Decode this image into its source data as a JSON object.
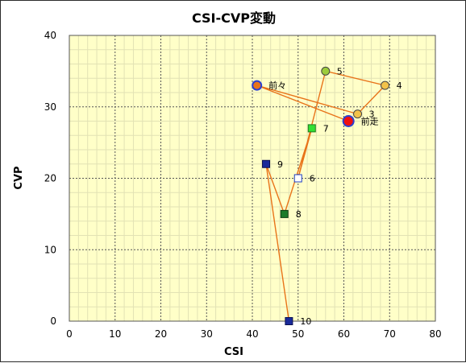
{
  "chart_data": {
    "type": "scatter",
    "title": "CSI-CVP変動",
    "xlabel": "CSI",
    "ylabel": "CVP",
    "xlim": [
      0,
      80
    ],
    "ylim": [
      0,
      40
    ],
    "xticks": [
      "0",
      "10",
      "20",
      "30",
      "40",
      "50",
      "60",
      "70",
      "80"
    ],
    "yticks": [
      "0",
      "10",
      "20",
      "30",
      "40"
    ],
    "grid": true,
    "line_color": "#e8731a",
    "plot_background": "#ffffc8",
    "points": [
      {
        "label": "前々",
        "x": 41,
        "y": 33,
        "marker": "circle",
        "fill": "#e8731a",
        "stroke": "#2b3fd0"
      },
      {
        "label": "前走",
        "x": 61,
        "y": 28,
        "marker": "circle-large",
        "fill": "#ee1111",
        "stroke": "#2b3fd0"
      },
      {
        "label": "3",
        "x": 63,
        "y": 29,
        "marker": "circle",
        "fill": "#f2c24a",
        "stroke": "#444444"
      },
      {
        "label": "4",
        "x": 69,
        "y": 33,
        "marker": "circle",
        "fill": "#f2c24a",
        "stroke": "#444444"
      },
      {
        "label": "5",
        "x": 56,
        "y": 35,
        "marker": "circle",
        "fill": "#9ccc3c",
        "stroke": "#444444"
      },
      {
        "label": "6",
        "x": 50,
        "y": 20,
        "marker": "square",
        "fill": "#ffffff",
        "stroke": "#1f3fc0"
      },
      {
        "label": "7",
        "x": 53,
        "y": 27,
        "marker": "square",
        "fill": "#33e033",
        "stroke": "#1f7a1f"
      },
      {
        "label": "8",
        "x": 47,
        "y": 15,
        "marker": "square",
        "fill": "#1a7a2a",
        "stroke": "#0a3a10"
      },
      {
        "label": "9",
        "x": 43,
        "y": 22,
        "marker": "square",
        "fill": "#1a2a9a",
        "stroke": "#0a1050"
      },
      {
        "label": "10",
        "x": 48,
        "y": 0,
        "marker": "square",
        "fill": "#1a2a9a",
        "stroke": "#0a1050"
      }
    ],
    "path_order": [
      "10",
      "9",
      "8",
      "7",
      "6",
      "5",
      "4",
      "3",
      "前々",
      "前走"
    ]
  }
}
